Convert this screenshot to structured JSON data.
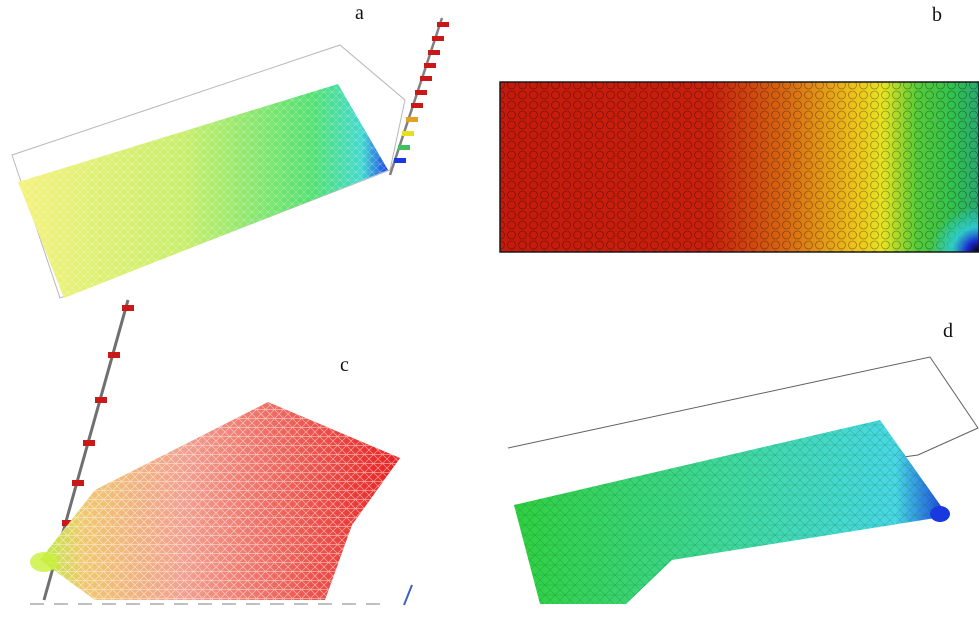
{
  "labels": {
    "a": "a",
    "b": "b",
    "c": "c",
    "d": "d"
  },
  "colors": {
    "red": "#d01a10",
    "orange": "#e88a10",
    "yellow": "#f2ec2a",
    "green": "#2ed24a",
    "cyan": "#38d8e8",
    "blue": "#1830e0",
    "dark": "#101010",
    "outline": "#9a9a9a"
  }
}
